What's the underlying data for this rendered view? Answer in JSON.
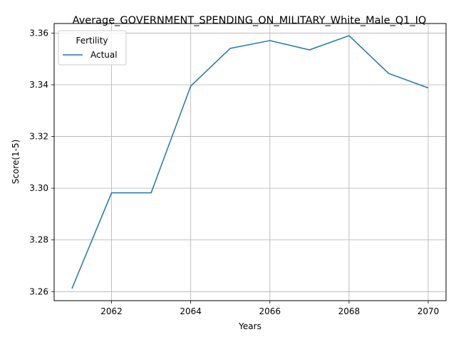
{
  "chart_data": {
    "type": "line",
    "title": "Average_GOVERNMENT_SPENDING_ON_MILITARY_White_Male_Q1_IQ",
    "xlabel": "Years",
    "ylabel": "Score(1-5)",
    "x": [
      2061,
      2062,
      2063,
      2064,
      2065,
      2066,
      2067,
      2068,
      2069,
      2070
    ],
    "xlim": [
      2060.55,
      2070.45
    ],
    "ylim": [
      3.2565,
      3.3637
    ],
    "xticks": [
      2062,
      2064,
      2066,
      2068,
      2070
    ],
    "yticks": [
      3.26,
      3.28,
      3.3,
      3.32,
      3.34,
      3.36
    ],
    "xtick_labels": [
      "2062",
      "2064",
      "2066",
      "2068",
      "2070"
    ],
    "ytick_labels": [
      "3.26",
      "3.28",
      "3.30",
      "3.32",
      "3.34",
      "3.36"
    ],
    "grid": true,
    "legend": {
      "title": "Fertility",
      "placement": "top-left"
    },
    "series": [
      {
        "name": "Actual",
        "color": "#1f77b4",
        "values": [
          3.2612,
          3.2982,
          3.2982,
          3.3395,
          3.3541,
          3.3571,
          3.3535,
          3.359,
          3.3444,
          3.3388
        ]
      }
    ]
  }
}
